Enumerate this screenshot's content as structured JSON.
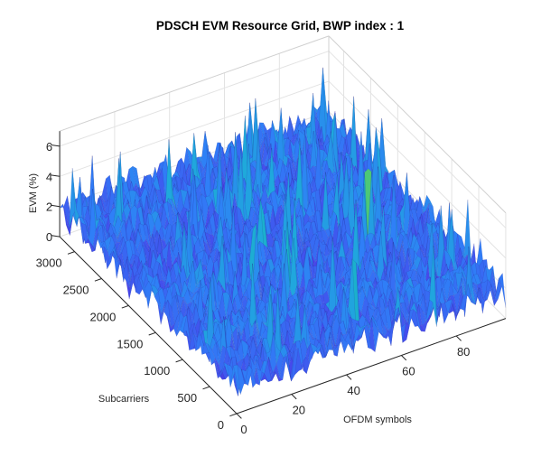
{
  "chart_data": {
    "type": "surface",
    "title": "PDSCH EVM Resource Grid, BWP index : 1",
    "xlabel": "OFDM symbols",
    "ylabel": "Subcarriers",
    "zlabel": "EVM (%)",
    "xlim": [
      0,
      98
    ],
    "ylim": [
      0,
      3276
    ],
    "zlim": [
      0,
      7
    ],
    "xticks": [
      "0",
      "20",
      "40",
      "60",
      "80"
    ],
    "yticks": [
      "0",
      "500",
      "1000",
      "1500",
      "2000",
      "2500",
      "3000"
    ],
    "zticks": [
      "0",
      "2",
      "4",
      "6"
    ],
    "z_typical": 2.2,
    "z_peak": 6.6,
    "colormap": [
      "#3e26a8",
      "#4746eb",
      "#2f7ff7",
      "#1fa8dc",
      "#14bfb0",
      "#68cc5c",
      "#f9fb15"
    ],
    "grid": true
  }
}
